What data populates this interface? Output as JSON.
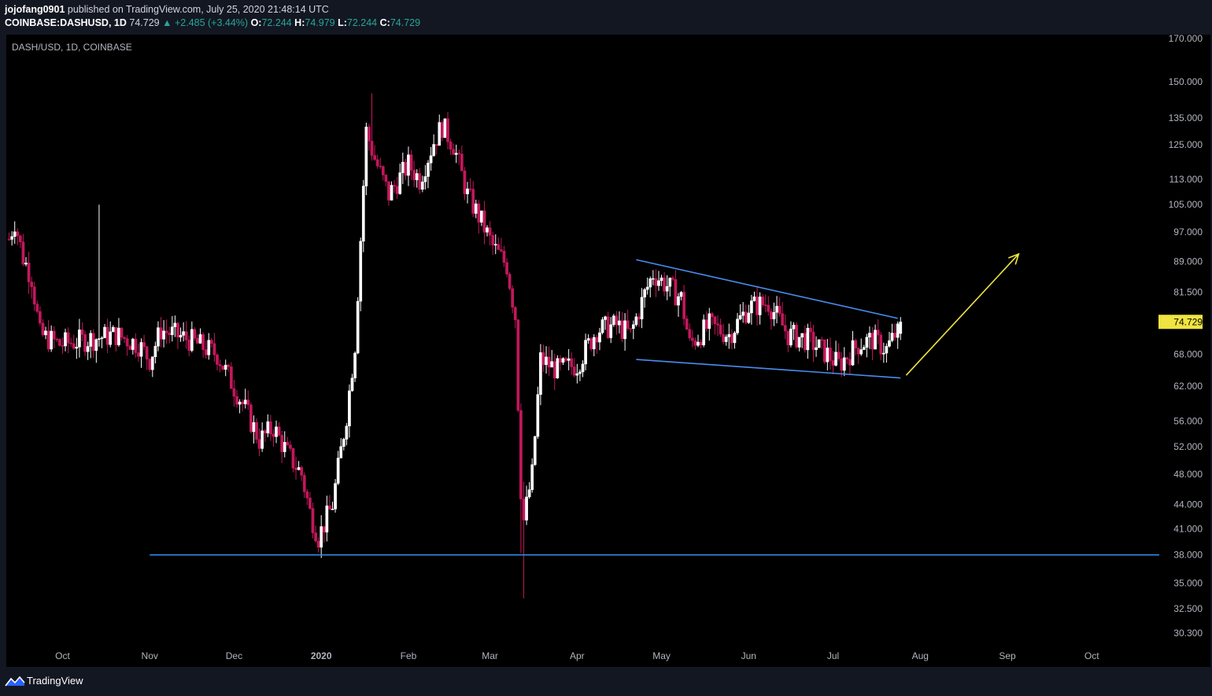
{
  "header": {
    "author": "jojofang0901",
    "published": " published on TradingView.com, July 25, 2020 21:48:14 UTC",
    "symbol": "COINBASE:DASHUSD, 1D",
    "last": "74.729",
    "change_arrow": "▲",
    "change": "+2.485 (+3.44%)",
    "open_label": "O:",
    "open": "72.244",
    "high_label": "H:",
    "high": "74.979",
    "low_label": "L:",
    "low": "72.244",
    "close_label": "C:",
    "close": "74.729"
  },
  "footer": {
    "brand": "TradingView",
    "logo_icon": "tradingview-logo-icon"
  },
  "colors": {
    "background": "#000000",
    "candle_up": "#ffffff",
    "candle_down": "#c2185b",
    "trendline": "#4a8cf0",
    "support": "#2e8ff0",
    "arrow": "#f0e442",
    "price_tag": "#f0e442",
    "axis_text": "#b2b5be"
  },
  "chart_data": {
    "type": "candlestick",
    "title": "DASH/USD, 1D, COINBASE",
    "y_scale": "log",
    "yticks": [
      "170.000",
      "150.000",
      "135.000",
      "125.000",
      "113.000",
      "105.000",
      "97.000",
      "89.000",
      "81.500",
      "68.000",
      "62.000",
      "56.000",
      "52.000",
      "48.000",
      "44.000",
      "41.000",
      "38.000",
      "35.000",
      "32.500",
      "30.300"
    ],
    "xticks": [
      "Oct",
      "Nov",
      "Dec",
      "2020",
      "Feb",
      "Mar",
      "Apr",
      "May",
      "Jun",
      "Jul",
      "Aug",
      "Sep",
      "Oct"
    ],
    "last_price": "74.729",
    "x_range": [
      "2019-09-11",
      "2020-10-25"
    ],
    "y_range": [
      29.0,
      172.0
    ],
    "close_anchors": [
      [
        "2019-09-12",
        95
      ],
      [
        "2019-09-14",
        100
      ],
      [
        "2019-09-17",
        90
      ],
      [
        "2019-09-20",
        85
      ],
      [
        "2019-09-23",
        72
      ],
      [
        "2019-09-30",
        70
      ],
      [
        "2019-10-10",
        71
      ],
      [
        "2019-10-20",
        72
      ],
      [
        "2019-10-28",
        70
      ],
      [
        "2019-11-01",
        67
      ],
      [
        "2019-11-05",
        73
      ],
      [
        "2019-11-15",
        71
      ],
      [
        "2019-11-25",
        68
      ],
      [
        "2019-12-05",
        58
      ],
      [
        "2019-12-10",
        53
      ],
      [
        "2019-12-15",
        55
      ],
      [
        "2019-12-20",
        51
      ],
      [
        "2019-12-25",
        48
      ],
      [
        "2019-12-28",
        43
      ],
      [
        "2019-12-31",
        40
      ],
      [
        "2020-01-05",
        44
      ],
      [
        "2020-01-10",
        57
      ],
      [
        "2020-01-13",
        70
      ],
      [
        "2020-01-15",
        95
      ],
      [
        "2020-01-17",
        130
      ],
      [
        "2020-01-20",
        120
      ],
      [
        "2020-01-25",
        108
      ],
      [
        "2020-02-01",
        118
      ],
      [
        "2020-02-05",
        113
      ],
      [
        "2020-02-10",
        126
      ],
      [
        "2020-02-13",
        132
      ],
      [
        "2020-02-17",
        125
      ],
      [
        "2020-02-22",
        108
      ],
      [
        "2020-02-27",
        100
      ],
      [
        "2020-03-02",
        93
      ],
      [
        "2020-03-07",
        88
      ],
      [
        "2020-03-10",
        76
      ],
      [
        "2020-03-12",
        46
      ],
      [
        "2020-03-13",
        42
      ],
      [
        "2020-03-16",
        48
      ],
      [
        "2020-03-19",
        67
      ],
      [
        "2020-03-25",
        65
      ],
      [
        "2020-04-01",
        66
      ],
      [
        "2020-04-08",
        73
      ],
      [
        "2020-04-15",
        74
      ],
      [
        "2020-04-20",
        72
      ],
      [
        "2020-04-25",
        81
      ],
      [
        "2020-04-28",
        86
      ],
      [
        "2020-05-03",
        83
      ],
      [
        "2020-05-08",
        80
      ],
      [
        "2020-05-11",
        70
      ],
      [
        "2020-05-18",
        74
      ],
      [
        "2020-05-25",
        72
      ],
      [
        "2020-06-01",
        78
      ],
      [
        "2020-06-08",
        79
      ],
      [
        "2020-06-15",
        72
      ],
      [
        "2020-06-22",
        71
      ],
      [
        "2020-06-29",
        68
      ],
      [
        "2020-07-03",
        66
      ],
      [
        "2020-07-10",
        70
      ],
      [
        "2020-07-15",
        71
      ],
      [
        "2020-07-20",
        69
      ],
      [
        "2020-07-23",
        72
      ],
      [
        "2020-07-24",
        72.244
      ],
      [
        "2020-07-25",
        74.729
      ]
    ],
    "drawings": {
      "upper_trendline": {
        "from": [
          "2020-04-22",
          89.5
        ],
        "to": [
          "2020-07-24",
          75.5
        ]
      },
      "lower_trendline": {
        "from": [
          "2020-04-22",
          67.0
        ],
        "to": [
          "2020-07-25",
          63.5
        ]
      },
      "support_line": {
        "from": [
          "2019-11-01",
          38.0
        ],
        "to": [
          "2020-10-25",
          38.0
        ]
      },
      "arrow": {
        "from": [
          "2020-07-27",
          64.0
        ],
        "to": [
          "2020-09-05",
          91.0
        ]
      }
    }
  }
}
